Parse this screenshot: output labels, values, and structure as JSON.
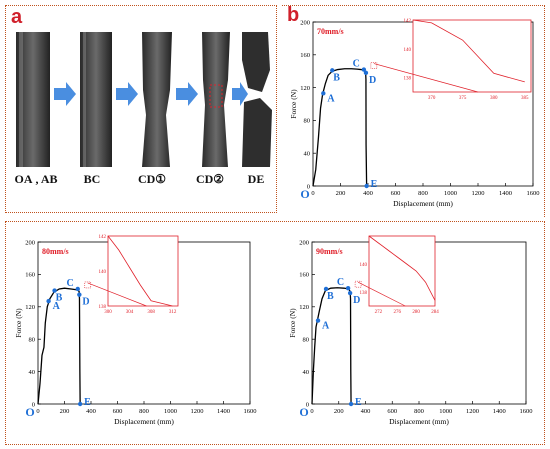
{
  "panel_a": {
    "letter": "a",
    "stages": [
      "OA , AB",
      "BC",
      "CD①",
      "CD②",
      "DE"
    ]
  },
  "panel_b": {
    "letter": "b"
  },
  "colors": {
    "curve": "#000000",
    "marker": "#1f6fd6",
    "inset": "#e0202a",
    "panel_letter": "#d0202b",
    "frame": "#c0531e",
    "arrow": "#4a8ee0"
  },
  "chart_data": [
    {
      "type": "line",
      "title": "70mm/s",
      "xlabel": "Displacement (mm)",
      "ylabel": "Force (N)",
      "xlim": [
        0,
        1600
      ],
      "ylim": [
        0,
        200
      ],
      "xticks": [
        0,
        200,
        400,
        600,
        800,
        1000,
        1200,
        1400,
        1600
      ],
      "yticks": [
        0,
        40,
        80,
        120,
        160,
        200
      ],
      "origin_label": "O",
      "series": [
        {
          "x": [
            0,
            20,
            40,
            55,
            70,
            90,
            110,
            140,
            180,
            230,
            280,
            320,
            350,
            370,
            380,
            383,
            385,
            386,
            390
          ],
          "y": [
            0,
            20,
            60,
            95,
            112,
            125,
            135,
            140,
            142,
            143,
            143,
            142.5,
            142,
            141.5,
            139,
            138,
            130,
            50,
            0
          ]
        }
      ],
      "points": [
        {
          "label": "A",
          "x": 75,
          "y": 113
        },
        {
          "label": "B",
          "x": 140,
          "y": 141
        },
        {
          "label": "C",
          "x": 370,
          "y": 142
        },
        {
          "label": "D",
          "x": 385,
          "y": 138
        },
        {
          "label": "E",
          "x": 390,
          "y": 0
        }
      ],
      "inset": {
        "xlim": [
          367,
          386
        ],
        "ylim": [
          137,
          142
        ],
        "xticks": [
          370,
          375,
          380,
          385
        ],
        "yticks": [
          138,
          140,
          142
        ],
        "x": [
          367,
          370,
          375,
          380,
          385
        ],
        "y": [
          142,
          141.8,
          140.6,
          138.3,
          137.7
        ]
      }
    },
    {
      "type": "line",
      "title": "80mm/s",
      "xlabel": "Displacement (mm)",
      "ylabel": "Force (N)",
      "xlim": [
        0,
        1600
      ],
      "ylim": [
        0,
        200
      ],
      "xticks": [
        0,
        200,
        400,
        600,
        800,
        1000,
        1200,
        1400,
        1600
      ],
      "yticks": [
        0,
        40,
        80,
        120,
        160,
        200
      ],
      "origin_label": "O",
      "series": [
        {
          "x": [
            0,
            15,
            30,
            45,
            55,
            70,
            90,
            120,
            160,
            200,
            250,
            290,
            305,
            310,
            313,
            316,
            318
          ],
          "y": [
            0,
            25,
            60,
            70,
            100,
            120,
            130,
            138,
            142,
            143,
            142,
            141,
            140,
            139,
            130,
            40,
            0
          ]
        }
      ],
      "points": [
        {
          "label": "A",
          "x": 80,
          "y": 127
        },
        {
          "label": "B",
          "x": 125,
          "y": 140
        },
        {
          "label": "C",
          "x": 300,
          "y": 142
        },
        {
          "label": "D",
          "x": 312,
          "y": 135
        },
        {
          "label": "E",
          "x": 318,
          "y": 0
        }
      ],
      "inset": {
        "xlim": [
          300,
          313
        ],
        "ylim": [
          138,
          142
        ],
        "xticks": [
          300,
          304,
          308,
          312
        ],
        "yticks": [
          138,
          140,
          142
        ],
        "x": [
          300,
          302,
          304,
          306,
          308,
          310,
          312
        ],
        "y": [
          142,
          141.2,
          140.2,
          139.2,
          138.3,
          138.15,
          138
        ]
      }
    },
    {
      "type": "line",
      "title": "90mm/s",
      "xlabel": "Displacement (mm)",
      "ylabel": "Force (N)",
      "xlim": [
        0,
        1600
      ],
      "ylim": [
        0,
        200
      ],
      "xticks": [
        0,
        200,
        400,
        600,
        800,
        1000,
        1200,
        1400,
        1600
      ],
      "yticks": [
        0,
        40,
        80,
        120,
        160,
        200
      ],
      "origin_label": "O",
      "series": [
        {
          "x": [
            0,
            10,
            20,
            30,
            40,
            55,
            75,
            100,
            140,
            190,
            240,
            275,
            285,
            288,
            290,
            292
          ],
          "y": [
            0,
            40,
            70,
            95,
            103,
            115,
            130,
            140,
            143,
            143.5,
            143,
            142,
            139,
            130,
            40,
            0
          ]
        }
      ],
      "points": [
        {
          "label": "A",
          "x": 45,
          "y": 103
        },
        {
          "label": "B",
          "x": 105,
          "y": 142
        },
        {
          "label": "C",
          "x": 270,
          "y": 143
        },
        {
          "label": "D",
          "x": 285,
          "y": 137
        },
        {
          "label": "E",
          "x": 292,
          "y": 0
        }
      ],
      "inset": {
        "xlim": [
          270,
          284
        ],
        "ylim": [
          137,
          142
        ],
        "xticks": [
          272,
          276,
          280,
          284
        ],
        "yticks": [
          138,
          140
        ],
        "x": [
          270,
          272,
          274,
          276,
          278,
          280,
          282,
          284
        ],
        "y": [
          142,
          141.5,
          141,
          140.5,
          140,
          139.5,
          138.7,
          137.4
        ]
      }
    }
  ]
}
